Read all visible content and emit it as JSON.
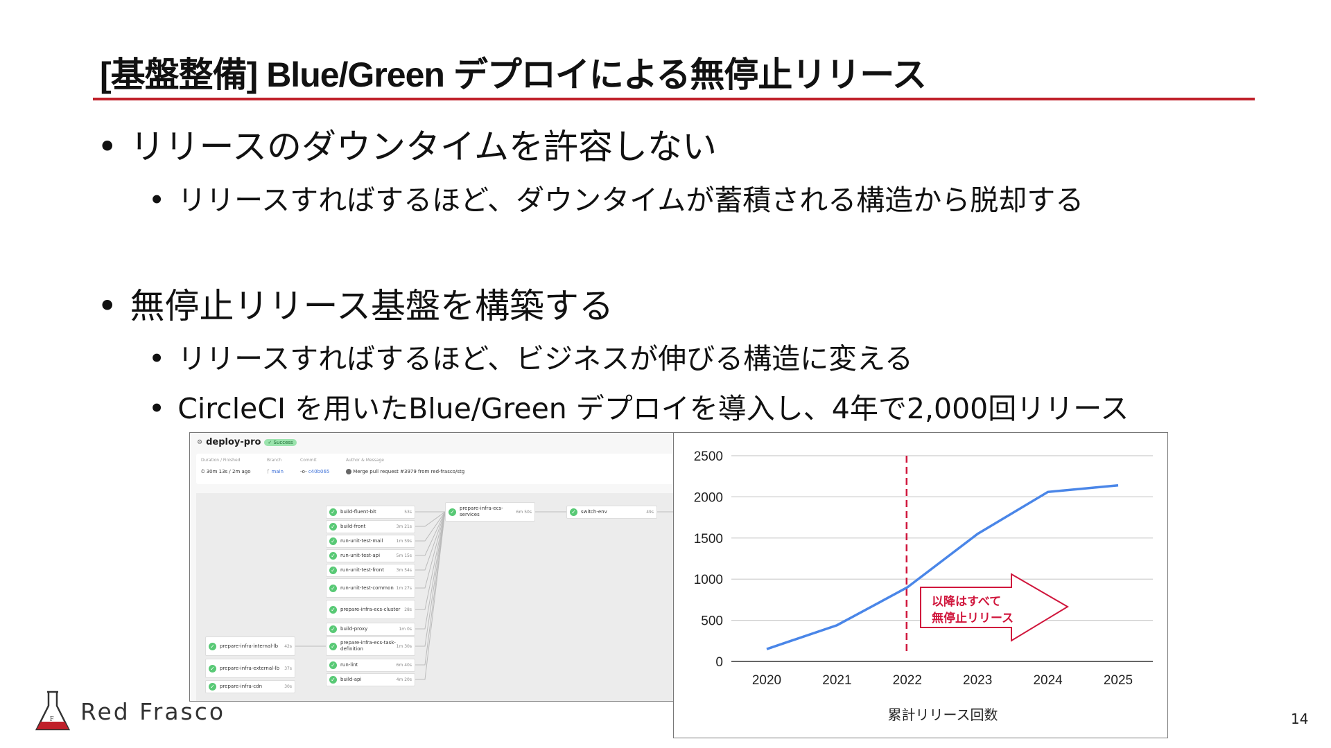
{
  "slide": {
    "title": "[基盤整備] Blue/Green デプロイによる無停止リリース",
    "bullets": [
      {
        "text": "リリースのダウンタイムを許容しない",
        "sub": [
          "リリースすればするほど、ダウンタイムが蓄積される構造から脱却する"
        ]
      },
      {
        "text": "無停止リリース基盤を構築する",
        "sub": [
          "リリースすればするほど、ビジネスが伸びる構造に変える",
          "CircleCI を用いたBlue/Green デプロイを導入し、4年で2,000回リリース"
        ]
      }
    ],
    "bullet_char": "•",
    "accent_color": "#c0202a",
    "page_number": "14",
    "logo_text": "Red Frasco"
  },
  "circleci": {
    "workflow": "deploy-pro",
    "status": "✓ Success",
    "duration_label": "Duration / Finished",
    "duration": "30m 13s / 2m ago",
    "branch_label": "Branch",
    "branch": "main",
    "commit_label": "Commit",
    "commit": "c40b065",
    "author_label": "Author & Message",
    "message": "Merge pull request #3979 from red-frasco/stg",
    "jobs": [
      {
        "name": "build-fluent-bit",
        "duration": "53s"
      },
      {
        "name": "build-front",
        "duration": "3m 21s"
      },
      {
        "name": "run-unit-test-mail",
        "duration": "1m 59s"
      },
      {
        "name": "run-unit-test-api",
        "duration": "5m 15s"
      },
      {
        "name": "run-unit-test-front",
        "duration": "3m 54s"
      },
      {
        "name": "run-unit-test-common",
        "duration": "1m 27s"
      },
      {
        "name": "prepare-infra-ecs-cluster",
        "duration": "28s"
      },
      {
        "name": "build-proxy",
        "duration": "1m 0s"
      },
      {
        "name": "prepare-infra-ecs-task-definition",
        "duration": "1m 30s"
      },
      {
        "name": "run-lint",
        "duration": "6m 40s"
      },
      {
        "name": "build-api",
        "duration": "4m 20s"
      },
      {
        "name": "prepare-infra-internal-lb",
        "duration": "42s"
      },
      {
        "name": "prepare-infra-external-lb",
        "duration": "37s"
      },
      {
        "name": "prepare-infra-cdn",
        "duration": "30s"
      },
      {
        "name": "prepare-infra-ecs-services",
        "duration": "6m 50s"
      },
      {
        "name": "switch-env",
        "duration": "49s"
      }
    ]
  },
  "chart_data": {
    "type": "line",
    "categories": [
      "2020",
      "2021",
      "2022",
      "2023",
      "2024",
      "2025"
    ],
    "values": [
      150,
      440,
      900,
      1550,
      2060,
      2140
    ],
    "xlabel": "累計リリース回数",
    "ylabel": "",
    "ylim": [
      0,
      2500
    ],
    "yticks": [
      0,
      500,
      1000,
      1500,
      2000,
      2500
    ],
    "grid": true,
    "line_color": "#4a86e8",
    "marker_line": {
      "at": "2022",
      "style": "dashed",
      "color": "#d0163c"
    },
    "annotation": {
      "lines": [
        "以降はすべて",
        "無停止リリース"
      ],
      "color": "#d0163c",
      "shape": "right-arrow"
    }
  }
}
